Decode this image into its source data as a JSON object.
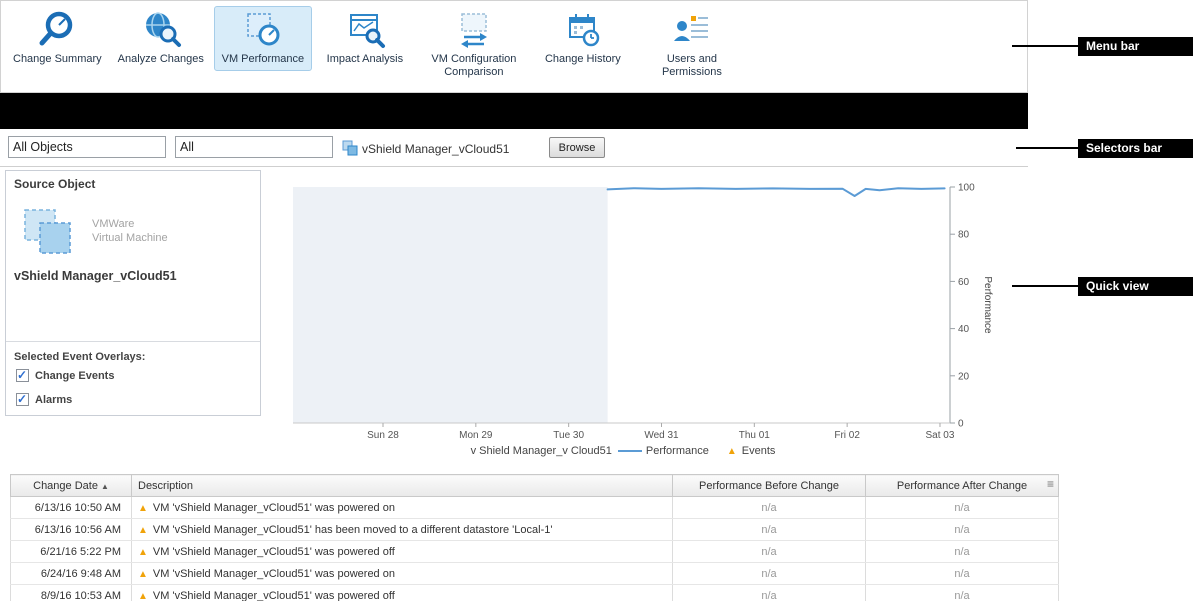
{
  "menu": {
    "items": [
      {
        "label": "Change Summary",
        "icon": "gauge-magnifier-icon",
        "selected": false
      },
      {
        "label": "Analyze Changes",
        "icon": "globe-magnifier-icon",
        "selected": false
      },
      {
        "label": "VM Performance",
        "icon": "vm-gauge-icon",
        "selected": true
      },
      {
        "label": "Impact Analysis",
        "icon": "chart-magnifier-icon",
        "selected": false
      },
      {
        "label": "VM Configuration Comparison",
        "icon": "vm-compare-arrows-icon",
        "selected": false
      },
      {
        "label": "Change History",
        "icon": "calendar-clock-icon",
        "selected": false
      },
      {
        "label": "Users and Permissions",
        "icon": "users-list-icon",
        "selected": false
      }
    ]
  },
  "selectors": {
    "object_type_filter": "All Objects",
    "subtype_filter": "All",
    "selected_object": "vShield Manager_vCloud51",
    "browse_label": "Browse"
  },
  "source_object": {
    "panel_title": "Source Object",
    "type_line1": "VMWare",
    "type_line2": "Virtual Machine",
    "name": "vShield Manager_vCloud51",
    "overlays_title": "Selected Event Overlays:",
    "overlays": [
      {
        "label": "Change Events",
        "checked": true
      },
      {
        "label": "Alarms",
        "checked": true
      }
    ]
  },
  "chart_data": {
    "type": "line",
    "title": "",
    "xlabel": "",
    "ylabel": "Performance",
    "ylim": [
      0,
      100
    ],
    "y_ticks": [
      0,
      20,
      40,
      60,
      80,
      100
    ],
    "x_ticks": [
      "Sun 28",
      "Mon 29",
      "Tue 30",
      "Wed 31",
      "Thu 01",
      "Fri 02",
      "Sat 03"
    ],
    "shaded_until_x": 2.42,
    "series": [
      {
        "name": "Performance",
        "color": "#5b9bd5",
        "points": [
          [
            2.42,
            99
          ],
          [
            2.7,
            99.5
          ],
          [
            3.0,
            99.2
          ],
          [
            3.4,
            99.5
          ],
          [
            3.8,
            99.2
          ],
          [
            4.2,
            99.4
          ],
          [
            4.6,
            99.2
          ],
          [
            4.95,
            99.3
          ],
          [
            5.08,
            96.2
          ],
          [
            5.2,
            99.2
          ],
          [
            5.35,
            98.6
          ],
          [
            5.55,
            99.5
          ],
          [
            5.8,
            99.2
          ],
          [
            6.05,
            99.4
          ]
        ]
      }
    ],
    "legend": {
      "series_prefix": "v Shield Manager_v Cloud51",
      "series_label": "Performance",
      "events_label": "Events",
      "events_color": "#f0a30a"
    }
  },
  "events_table": {
    "columns": [
      "Change Date",
      "Description",
      "Performance Before Change",
      "Performance After Change"
    ],
    "sort_column": "Change Date",
    "sort_direction": "asc",
    "rows": [
      {
        "date": "6/13/16 10:50 AM",
        "description": "VM 'vShield Manager_vCloud51' was powered on",
        "before": "n/a",
        "after": "n/a"
      },
      {
        "date": "6/13/16 10:56 AM",
        "description": "VM 'vShield Manager_vCloud51' has been moved to a different datastore 'Local-1'",
        "before": "n/a",
        "after": "n/a"
      },
      {
        "date": "6/21/16 5:22 PM",
        "description": "VM 'vShield Manager_vCloud51' was powered off",
        "before": "n/a",
        "after": "n/a"
      },
      {
        "date": "6/24/16 9:48 AM",
        "description": "VM 'vShield Manager_vCloud51' was powered on",
        "before": "n/a",
        "after": "n/a"
      },
      {
        "date": "8/9/16 10:53 AM",
        "description": "VM 'vShield Manager_vCloud51' was powered off",
        "before": "n/a",
        "after": "n/a"
      }
    ]
  },
  "annotations": [
    {
      "label": "Menu bar"
    },
    {
      "label": "Selectors bar"
    },
    {
      "label": "Quick view"
    }
  ],
  "colors": {
    "accent_blue": "#2e86c9",
    "line_blue": "#5b9bd5",
    "warning_orange": "#f0a30a",
    "selected_tab_bg": "#d8ecf9"
  }
}
